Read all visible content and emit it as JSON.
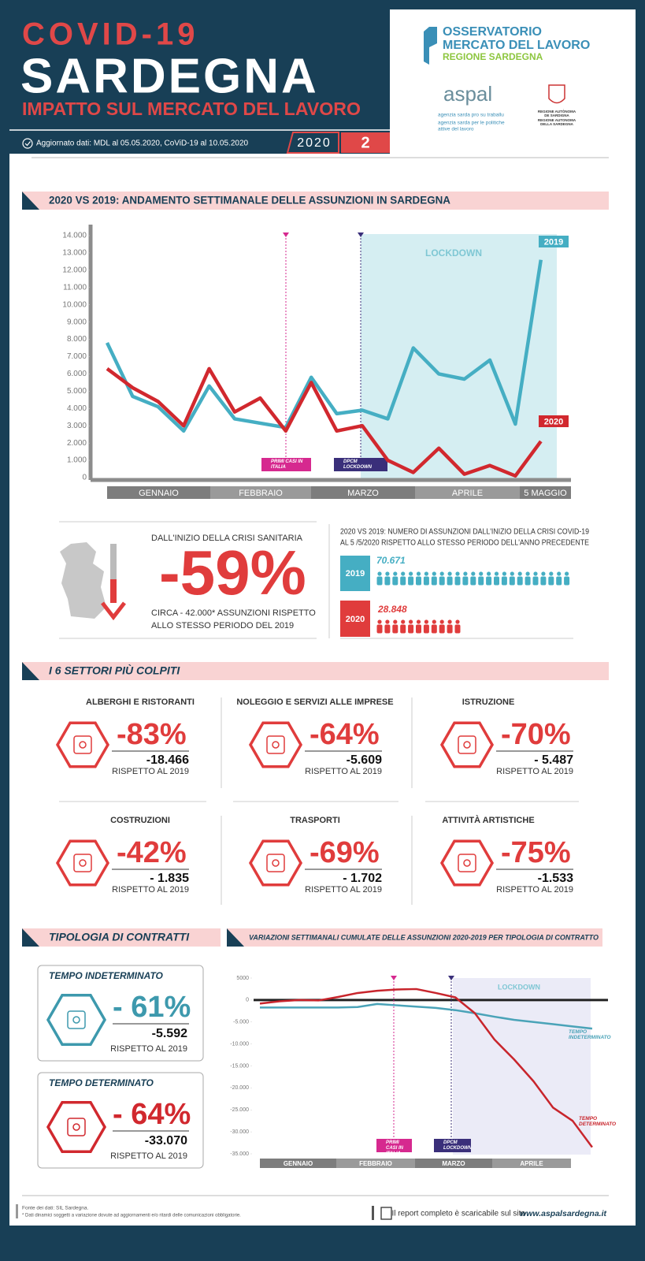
{
  "header": {
    "title1": "COVID-19",
    "title2": "SARDEGNA",
    "subtitle": "IMPATTO SUL MERCATO DEL LAVORO",
    "update": "Aggiornato dati: MDL al 05.05.2020, CoViD-19 al 10.05.2020",
    "year": "2020",
    "issue": "2"
  },
  "logos": {
    "observatory": [
      "OSSERVATORIO",
      "MERCATO DEL LAVORO",
      "REGIONE SARDEGNA"
    ],
    "aspal": "aspal",
    "aspal_lines": [
      "agenzia sarda pro su traballu",
      "agenzia sarda per le politiche",
      "attive del lavoro"
    ],
    "region": [
      "REGIONE AUTÒNOMA",
      "DE SARDIGNA",
      "REGIONE AUTONOMA",
      "DELLA SARDEGNA"
    ]
  },
  "chart_data": [
    {
      "type": "line",
      "title": "2020 VS 2019: ANDAMENTO SETTIMANALE DELLE ASSUNZIONI IN SARDEGNA",
      "categories": [
        null,
        null,
        null,
        null,
        null,
        null,
        null,
        null,
        null,
        null,
        null,
        null,
        null,
        null,
        null,
        null,
        null,
        null
      ],
      "month_labels": [
        "GENNAIO",
        "FEBBRAIO",
        "MARZO",
        "APRILE",
        "5 MAGGIO"
      ],
      "series": [
        {
          "name": "2019",
          "color": "#45aec3",
          "values": [
            7800,
            4700,
            4100,
            2700,
            5300,
            3400,
            3150,
            2900,
            5800,
            3700,
            3900,
            3400,
            7500,
            6000,
            5700,
            6800,
            3100,
            12600
          ]
        },
        {
          "name": "2020",
          "color": "#d1282e",
          "values": [
            6300,
            5200,
            4400,
            3000,
            6300,
            3800,
            4600,
            2700,
            5500,
            2700,
            3000,
            1000,
            300,
            1700,
            200,
            700,
            100,
            2100
          ]
        }
      ],
      "ylim": [
        0,
        14000
      ],
      "yticks": [
        0,
        {
          "value": 1000,
          "label": "1.000"
        },
        {
          "value": 2000,
          "label": "2.000"
        },
        {
          "value": 3000,
          "label": "3.000"
        },
        {
          "value": 4000,
          "label": "4.000"
        },
        {
          "value": 5000,
          "label": "5.000"
        },
        {
          "value": 6000,
          "label": "6.000"
        },
        {
          "value": 7000,
          "label": "7.000"
        },
        {
          "value": 8000,
          "label": "8.000"
        },
        {
          "value": 9000,
          "label": "9.000"
        },
        {
          "value": 10000,
          "label": "10.000"
        },
        {
          "value": 11000,
          "label": "11.000"
        },
        {
          "value": 12000,
          "label": "12.000"
        },
        {
          "value": 13000,
          "label": "13.000"
        },
        {
          "value": 14000,
          "label": "14.000"
        }
      ],
      "annotations": [
        "PRIMI CASI IN ITALIA",
        "DPCM LOCKDOWN",
        "LOCKDOWN"
      ]
    },
    {
      "type": "line",
      "title": "VARIAZIONI SETTIMANALI CUMULATE DELLE ASSUNZIONI 2020-2019 PER TIPOLOGIA DI CONTRATTO",
      "categories": [
        null,
        null,
        null,
        null,
        null,
        null,
        null,
        null,
        null,
        null,
        null,
        null,
        null,
        null,
        null,
        null,
        null,
        null
      ],
      "month_labels": [
        "GENNAIO",
        "FEBBRAIO",
        "MARZO",
        "APRILE"
      ],
      "series": [
        {
          "name": "TEMPO INDETERMINATO",
          "color": "#4aa3b8",
          "values": [
            -1700,
            -1700,
            -1700,
            -1700,
            -1700,
            -1600,
            -900,
            -1200,
            -1500,
            -1800,
            -2300,
            -3000,
            -3800,
            -4500,
            -5000,
            -5500,
            -6000,
            -6500
          ]
        },
        {
          "name": "TEMPO DETERMINATO",
          "color": "#c8252c",
          "values": [
            -800,
            -300,
            0,
            -100,
            700,
            1600,
            2100,
            2400,
            2500,
            1600,
            600,
            -3000,
            -9000,
            -13500,
            -18500,
            -24500,
            -27500,
            -33500
          ]
        }
      ],
      "ylim": [
        -35000,
        5000
      ],
      "yticks": [
        5000,
        0,
        {
          "value": -5000,
          "label": "-5.000"
        },
        {
          "value": -10000,
          "label": "-10.000"
        },
        {
          "value": -15000,
          "label": "-15.000"
        },
        {
          "value": -20000,
          "label": "-20.000"
        },
        {
          "value": -25000,
          "label": "-25.000"
        },
        {
          "value": -30000,
          "label": "-30.000"
        },
        {
          "value": -35000,
          "label": "-35.000"
        }
      ],
      "annotations": [
        "PRIMI CASI IN ITALIA",
        "DPCM LOCKDOWN",
        "LOCKDOWN"
      ]
    }
  ],
  "summary": {
    "intro": "DALL'INIZIO DELLA CRISI SANITARIA",
    "headline": "-59%",
    "note": [
      "CIRCA - 42.000* ASSUNZIONI RISPETTO",
      "ALLO STESSO PERIODO DEL 2019"
    ],
    "comparison_title": [
      "2020 VS 2019: NUMERO DI ASSUNZIONI DALL'INIZIO DELLA CRISI COVID-19",
      "AL 5 /5/2020 RISPETTO ALLO STESSO PERIODO DELL'ANNO PRECEDENTE"
    ],
    "rows": [
      {
        "year": "2019",
        "total": "70.671"
      },
      {
        "year": "2020",
        "total": "28.848"
      }
    ]
  },
  "sectors": {
    "title": "I 6 SETTORI PIÙ COLPITI",
    "items": [
      {
        "name": "ALBERGHI E RISTORANTI",
        "change": "-83%",
        "difference": "-18.466",
        "note": "RISPETTO AL 2019"
      },
      {
        "name": "NOLEGGIO E SERVIZI ALLE IMPRESE",
        "change": "-64%",
        "difference": "-5.609",
        "note": "RISPETTO AL 2019"
      },
      {
        "name": "ISTRUZIONE",
        "change": "-70%",
        "difference": "- 5.487",
        "note": "RISPETTO AL 2019"
      },
      {
        "name": "COSTRUZIONI",
        "change": "-42%",
        "difference": "- 1.835",
        "note": "RISPETTO AL 2019"
      },
      {
        "name": "TRASPORTI",
        "change": "-69%",
        "difference": "- 1.702",
        "note": "RISPETTO AL 2019"
      },
      {
        "name": "ATTIVITÀ ARTISTICHE",
        "change": "-75%",
        "difference": "-1.533",
        "note": "RISPETTO AL 2019"
      }
    ]
  },
  "contracts": {
    "title": "TIPOLOGIA DI CONTRATTI",
    "items": [
      {
        "name": "TEMPO INDETERMINATO",
        "change": "- 61%",
        "difference": "-5.592",
        "note": "RISPETTO AL 2019"
      },
      {
        "name": "TEMPO DETERMINATO",
        "change": "- 64%",
        "difference": "-33.070",
        "note": "RISPETTO AL 2019"
      }
    ]
  },
  "footer": {
    "source": "Fonte dei dati: SIL Sardegna.",
    "disclaimer": "* Dati dinamici soggetti a variazione dovute ad aggiornamenti e/o ritardi delle comunicazioni obbligatorie.",
    "download": "Il report completo è scaricabile sul sito",
    "site": "www.aspalsardegna.it"
  }
}
